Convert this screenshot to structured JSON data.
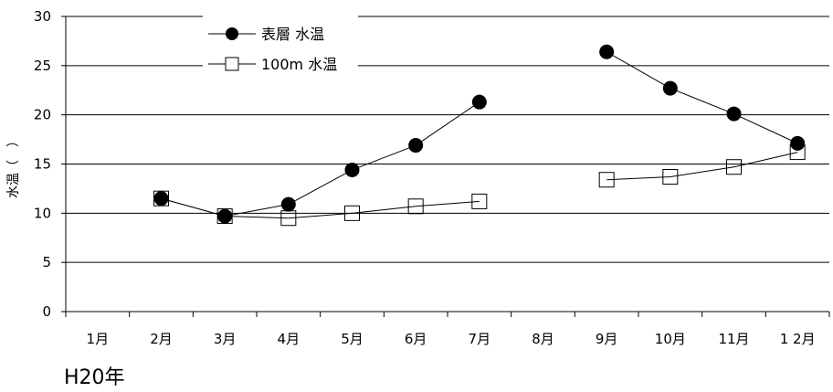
{
  "chart_data": {
    "type": "line",
    "categories": [
      "1月",
      "2月",
      "3月",
      "4月",
      "5月",
      "6月",
      "7月",
      "8月",
      "9月",
      "10月",
      "11月",
      "1 2月"
    ],
    "series": [
      {
        "name": "表層 水温",
        "marker": "filled-circle",
        "color": "#000000",
        "values": [
          null,
          11.5,
          9.7,
          10.9,
          14.4,
          16.9,
          21.3,
          null,
          26.4,
          22.7,
          20.1,
          17.1
        ]
      },
      {
        "name": "100m 水温",
        "marker": "open-square",
        "color": "#000000",
        "values": [
          null,
          11.5,
          9.7,
          9.5,
          10.0,
          10.7,
          11.2,
          null,
          13.4,
          13.7,
          14.7,
          16.2
        ]
      }
    ],
    "ylabel": "水温（　）",
    "xlabel": "",
    "ylim": [
      0,
      30
    ],
    "yticks": [
      0,
      5,
      10,
      15,
      20,
      25,
      30
    ],
    "grid": true,
    "legend_position": "top-center"
  },
  "footer": {
    "year_label": "H20年"
  }
}
